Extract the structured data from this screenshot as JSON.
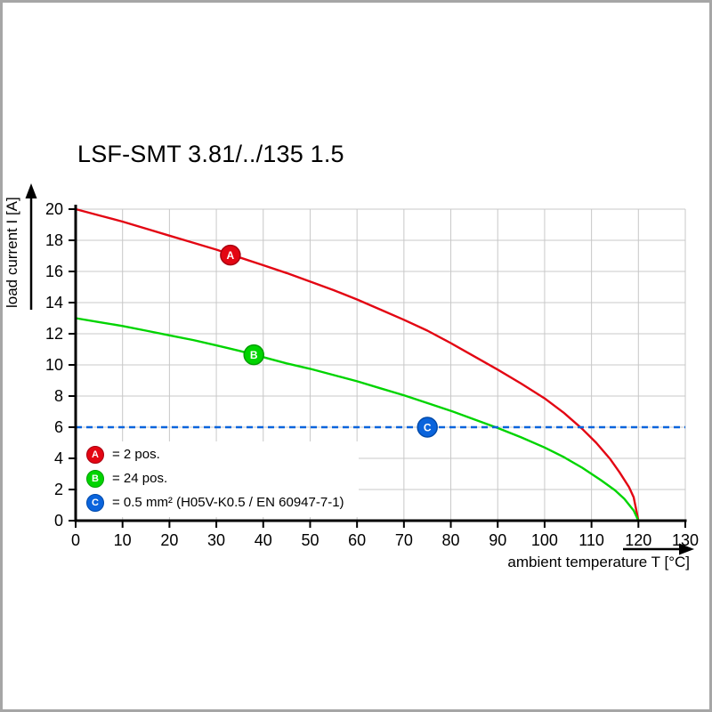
{
  "title": "LSF-SMT 3.81/../135 1.5",
  "chart_data": {
    "type": "line",
    "title": "LSF-SMT 3.81/../135 1.5",
    "xlabel": "ambient temperature T [°C]",
    "ylabel": "load current I [A]",
    "xlim": [
      0,
      130
    ],
    "ylim": [
      0,
      20
    ],
    "xticks": [
      0,
      10,
      20,
      30,
      40,
      50,
      60,
      70,
      80,
      90,
      100,
      110,
      120,
      130
    ],
    "yticks": [
      0,
      2,
      4,
      6,
      8,
      10,
      12,
      14,
      16,
      18,
      20
    ],
    "grid": true,
    "grid_color": "#c8c8c8",
    "axis_color": "#000000",
    "legend_position": "lower-left-inside",
    "series": [
      {
        "letter": "A",
        "legend_label": "= 2 pos.",
        "color": "#e30613",
        "edge_color": "#a80010",
        "style": "solid",
        "marker_at": {
          "x": 33,
          "y": 17.05
        },
        "points": [
          [
            0,
            20
          ],
          [
            5,
            19.6
          ],
          [
            10,
            19.2
          ],
          [
            15,
            18.75
          ],
          [
            20,
            18.3
          ],
          [
            25,
            17.85
          ],
          [
            30,
            17.4
          ],
          [
            35,
            16.9
          ],
          [
            40,
            16.4
          ],
          [
            45,
            15.9
          ],
          [
            50,
            15.35
          ],
          [
            55,
            14.8
          ],
          [
            60,
            14.2
          ],
          [
            65,
            13.55
          ],
          [
            70,
            12.9
          ],
          [
            75,
            12.2
          ],
          [
            80,
            11.4
          ],
          [
            85,
            10.55
          ],
          [
            90,
            9.7
          ],
          [
            95,
            8.8
          ],
          [
            100,
            7.85
          ],
          [
            104,
            6.95
          ],
          [
            108,
            5.9
          ],
          [
            111,
            5.0
          ],
          [
            114,
            3.95
          ],
          [
            116,
            3.1
          ],
          [
            118,
            2.15
          ],
          [
            119,
            1.5
          ],
          [
            120,
            0
          ]
        ]
      },
      {
        "letter": "B",
        "legend_label": "= 24 pos.",
        "color": "#00d400",
        "edge_color": "#009e00",
        "style": "solid",
        "marker_at": {
          "x": 38,
          "y": 10.65
        },
        "points": [
          [
            0,
            13
          ],
          [
            5,
            12.75
          ],
          [
            10,
            12.5
          ],
          [
            15,
            12.2
          ],
          [
            20,
            11.9
          ],
          [
            25,
            11.6
          ],
          [
            30,
            11.25
          ],
          [
            35,
            10.9
          ],
          [
            40,
            10.5
          ],
          [
            45,
            10.1
          ],
          [
            50,
            9.75
          ],
          [
            55,
            9.35
          ],
          [
            60,
            8.95
          ],
          [
            65,
            8.5
          ],
          [
            70,
            8.05
          ],
          [
            75,
            7.55
          ],
          [
            80,
            7.05
          ],
          [
            85,
            6.5
          ],
          [
            90,
            5.95
          ],
          [
            95,
            5.35
          ],
          [
            100,
            4.7
          ],
          [
            104,
            4.1
          ],
          [
            108,
            3.4
          ],
          [
            112,
            2.6
          ],
          [
            115,
            1.95
          ],
          [
            117,
            1.4
          ],
          [
            119,
            0.65
          ],
          [
            120,
            0
          ]
        ]
      },
      {
        "letter": "C",
        "legend_label": "= 0.5 mm² (H05V-K0.5 / EN 60947-7-1)",
        "color": "#0a64dc",
        "edge_color": "#004aaa",
        "style": "dashed-hline",
        "hline_y": 6,
        "marker_at": {
          "x": 75,
          "y": 6
        },
        "points": [
          [
            0,
            6
          ],
          [
            130,
            6
          ]
        ]
      }
    ]
  }
}
